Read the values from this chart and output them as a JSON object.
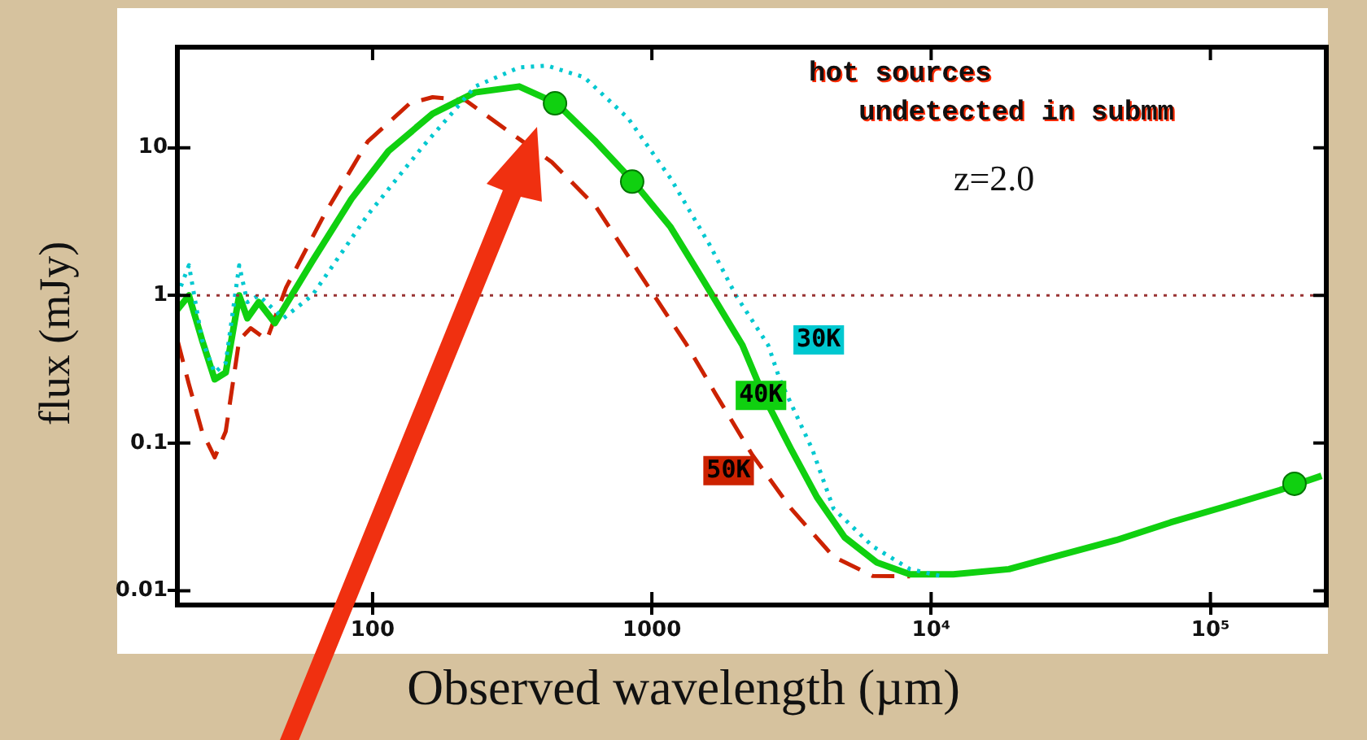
{
  "chart_data": {
    "type": "line",
    "xlabel": "Observed wavelength (µm)",
    "ylabel": "flux (mJy)",
    "log": "xy",
    "grid": false,
    "legend": false,
    "marker": "none",
    "xlim": [
      20,
      260000
    ],
    "ylim": [
      0.008,
      48
    ],
    "xticks": [
      100,
      1000,
      {
        "value": 10000,
        "label": "10⁴"
      },
      {
        "value": 100000,
        "label": "10⁵"
      }
    ],
    "yticks": [
      0.01,
      0.1,
      1,
      10
    ],
    "annotations": [
      "hot sources\n   undetected in submm",
      "z=2.0"
    ],
    "ref_lines": [
      {
        "axis": "y",
        "value": 1,
        "color": "#993333",
        "line_style": "dotted"
      }
    ],
    "series": [
      {
        "name": "30K",
        "color": "#00c8d0",
        "line_style": "dotted",
        "x": [
          20,
          22,
          24.5,
          27.2,
          29.8,
          33.3,
          35.6,
          39.1,
          47.9,
          60.8,
          96,
          150,
          233,
          335,
          421,
          573,
          823,
          1167,
          1610,
          2000,
          2610,
          2870,
          3750,
          4470,
          6170,
          8400,
          11000
        ],
        "values": [
          1.0,
          1.6,
          0.5,
          0.3,
          0.35,
          1.6,
          0.9,
          1.0,
          0.7,
          1.0,
          3.5,
          10,
          26,
          35,
          36,
          30,
          15.8,
          6.2,
          2.2,
          1.0,
          0.46,
          0.27,
          0.091,
          0.036,
          0.02,
          0.014,
          0.0125
        ]
      },
      {
        "name": "40K",
        "color": "#10d010",
        "line_style": "solid",
        "x": [
          20,
          22,
          24.5,
          27.2,
          29.8,
          33.3,
          35.6,
          39.1,
          44.7,
          60.8,
          84,
          114,
          164,
          233,
          335,
          456,
          630,
          857,
          1167,
          1530,
          2110,
          2510,
          3150,
          3900,
          4900,
          6400,
          8400,
          12000,
          19000,
          29000,
          46000,
          72000,
          112000,
          177000,
          250000
        ],
        "values": [
          0.8,
          1.0,
          0.5,
          0.27,
          0.3,
          1.0,
          0.7,
          0.9,
          0.65,
          1.7,
          4.5,
          9.5,
          17,
          23.7,
          26,
          20,
          11,
          5.9,
          2.9,
          1.26,
          0.46,
          0.21,
          0.091,
          0.043,
          0.023,
          0.0155,
          0.0129,
          0.0129,
          0.014,
          0.0174,
          0.022,
          0.029,
          0.037,
          0.048,
          0.06
        ]
      },
      {
        "name": "50K",
        "color": "#cc2200",
        "line_style": "dashed",
        "x": [
          20,
          22,
          24.5,
          27.2,
          29.8,
          33.3,
          36.6,
          41.8,
          49,
          67,
          96,
          136,
          164,
          215,
          305,
          438,
          630,
          892,
          1335,
          1680,
          2290,
          3150,
          4470,
          6170,
          8400
        ],
        "values": [
          0.5,
          0.25,
          0.12,
          0.08,
          0.12,
          0.5,
          0.6,
          0.5,
          1.13,
          3.5,
          11,
          20,
          22,
          21,
          13,
          8,
          4,
          1.46,
          0.46,
          0.22,
          0.083,
          0.036,
          0.017,
          0.0126,
          0.0125
        ]
      },
      {
        "type": "scatter",
        "marker": "circle",
        "color": "#10d010",
        "x": [
          450,
          850,
          200000
        ],
        "values": [
          20,
          5.9,
          0.053
        ]
      }
    ]
  }
}
